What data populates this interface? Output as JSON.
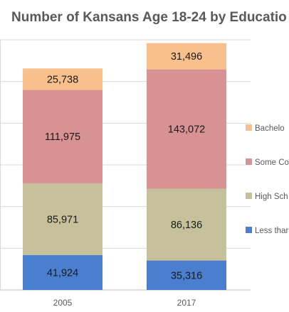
{
  "chart_data": {
    "type": "bar",
    "stacked": true,
    "title": "Number of Kansans Age 18-24 by Educatio",
    "categories": [
      "2005",
      "2017"
    ],
    "series": [
      {
        "name": "Less thar",
        "values": [
          41924,
          35316
        ],
        "labels": [
          "41,924",
          "35,316"
        ],
        "color": "#4a7fcf"
      },
      {
        "name": "High Sch",
        "values": [
          85971,
          86136
        ],
        "labels": [
          "85,971",
          "86,136"
        ],
        "color": "#c6c19a"
      },
      {
        "name": "Some Co",
        "values": [
          111975,
          143072
        ],
        "labels": [
          "111,975",
          "143,072"
        ],
        "color": "#d99293"
      },
      {
        "name": "Bachelo",
        "values": [
          25738,
          31496
        ],
        "labels": [
          "25,738",
          "31,496"
        ],
        "color": "#f8c08c"
      }
    ],
    "ylim": [
      0,
      300000
    ],
    "grid": true,
    "legend_position": "right"
  }
}
